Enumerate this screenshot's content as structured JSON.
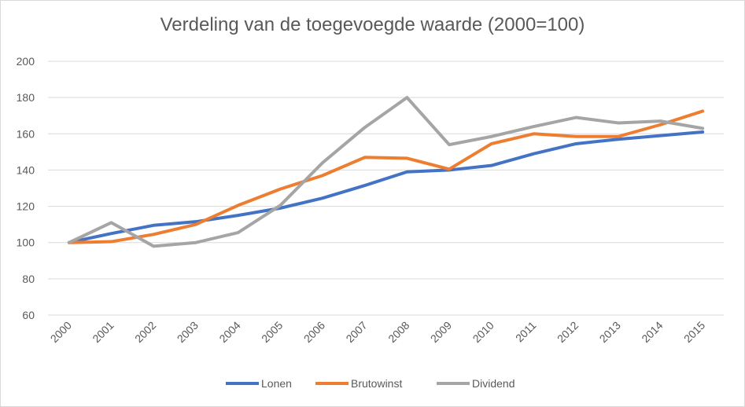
{
  "chart_data": {
    "type": "line",
    "title": "Verdeling van de toegevoegde waarde (2000=100)",
    "xlabel": "",
    "ylabel": "",
    "categories": [
      "2000",
      "2001",
      "2002",
      "2003",
      "2004",
      "2005",
      "2006",
      "2007",
      "2008",
      "2009",
      "2010",
      "2011",
      "2012",
      "2013",
      "2014",
      "2015"
    ],
    "ylim": [
      60,
      200
    ],
    "yticks": [
      60,
      80,
      100,
      120,
      140,
      160,
      180,
      200
    ],
    "grid": true,
    "legend_position": "bottom",
    "series": [
      {
        "name": "Lonen",
        "color": "#4472c4",
        "values": [
          100,
          105,
          109.5,
          111.5,
          115,
          119,
          124.5,
          131.5,
          139,
          140,
          142.5,
          149,
          154.5,
          157,
          159,
          161
        ]
      },
      {
        "name": "Brutowinst",
        "color": "#ed7d31",
        "values": [
          100,
          100.5,
          104.5,
          110,
          120.5,
          129.5,
          137,
          147,
          146.5,
          140.5,
          154.5,
          160,
          158.5,
          158.5,
          165,
          172.5
        ]
      },
      {
        "name": "Dividend",
        "color": "#a5a5a5",
        "values": [
          100,
          111,
          98,
          100,
          105.5,
          120.5,
          144,
          163.5,
          180,
          154,
          158.5,
          164,
          169,
          166,
          167,
          163
        ]
      }
    ]
  }
}
